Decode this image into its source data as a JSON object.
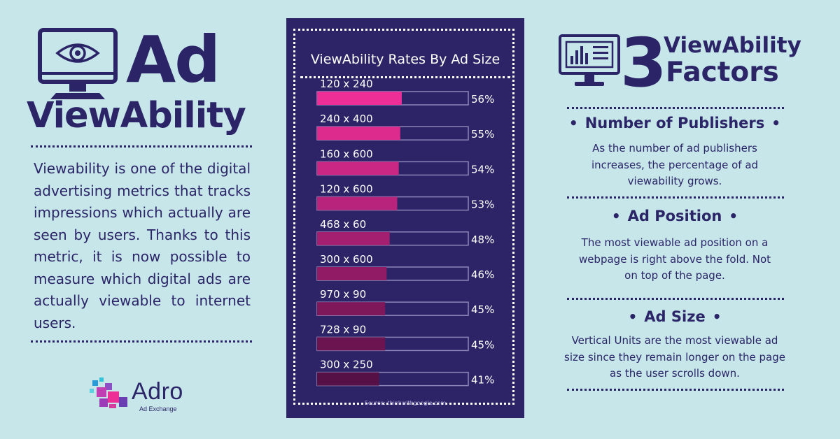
{
  "left": {
    "title_line1": "Ad",
    "title_line2": "ViewAbility",
    "intro": "Viewability is one of the digital advertising metrics that tracks impressions which actually are seen by users. Thanks to this metric, it is now possible to measure which digital ads are actually viewable to internet users.",
    "brand_name": "Adro",
    "brand_tagline": "Ad Exchange"
  },
  "right": {
    "factor_count": "3",
    "heading_line1": "ViewAbility",
    "heading_line2": "Factors",
    "factors": [
      {
        "title": "Number of Publishers",
        "text": "As the number of ad publishers increases, the percentage of ad viewability grows."
      },
      {
        "title": "Ad Position",
        "text": "The most viewable ad position on a webpage is right above the fold. Not on top of the page."
      },
      {
        "title": "Ad Size",
        "text": "Vertical Units are the most viewable ad size since they remain longer on the page as the user scrolls down."
      }
    ]
  },
  "chart_data": {
    "type": "bar",
    "orientation": "horizontal",
    "title": "ViewAbility Rates By Ad Size",
    "source": "Source: thinkwithgoogle.com",
    "categories": [
      "120 x 240",
      "240 x 400",
      "160 x 600",
      "120 x 600",
      "468 x 60",
      "300 x 600",
      "970 x 90",
      "728 x 90",
      "300 x 250"
    ],
    "values": [
      56,
      55,
      54,
      53,
      48,
      46,
      45,
      45,
      41
    ],
    "value_labels": [
      "56%",
      "55%",
      "54%",
      "53%",
      "48%",
      "46%",
      "45%",
      "45%",
      "41%"
    ],
    "unit": "%",
    "xlim": [
      0,
      100
    ],
    "bar_colors": [
      "#ec2e96",
      "#dc2a8d",
      "#ca2784",
      "#b8237b",
      "#a51f71",
      "#921b66",
      "#7f175b",
      "#6b1450",
      "#571045"
    ],
    "outline_color": "#8c86b8",
    "grid": false,
    "legend": "none"
  }
}
